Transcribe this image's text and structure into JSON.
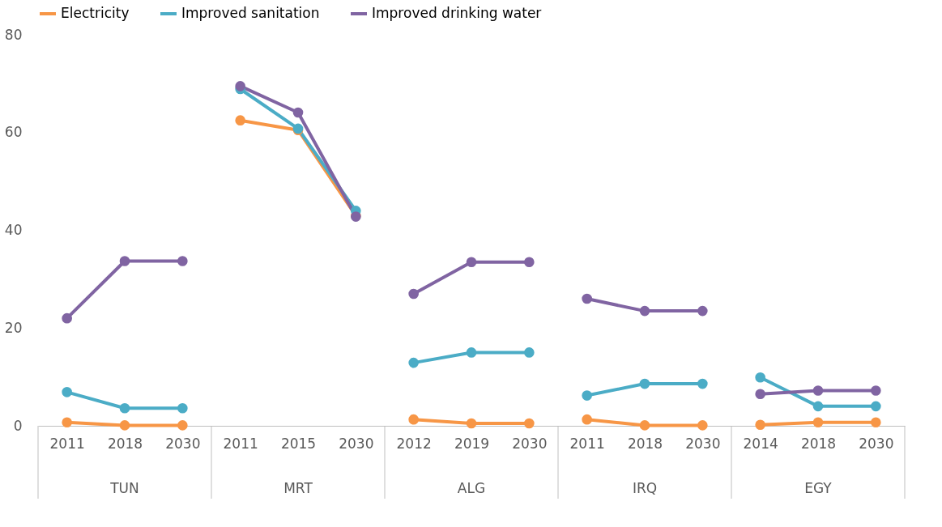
{
  "chart_data": {
    "type": "line",
    "categories": [
      "2011",
      "2018",
      "2030",
      "2011",
      "2015",
      "2030",
      "2012",
      "2019",
      "2030",
      "2011",
      "2018",
      "2030",
      "2014",
      "2018",
      "2030"
    ],
    "series": [
      {
        "name": "Electricity",
        "color": "#f79646",
        "values": [
          0.7,
          0.1,
          0.1,
          62.5,
          60.5,
          43.0,
          1.3,
          0.5,
          0.5,
          1.3,
          0.1,
          0.1,
          0.2,
          0.7,
          0.7
        ]
      },
      {
        "name": "Improved sanitation",
        "color": "#4bacc6",
        "values": [
          6.9,
          3.6,
          3.6,
          68.9,
          60.8,
          44.0,
          12.9,
          15.0,
          15.0,
          6.2,
          8.6,
          8.6,
          9.9,
          4.0,
          4.0
        ]
      },
      {
        "name": "Improved drinking water",
        "color": "#8064a2",
        "values": [
          22.0,
          33.7,
          33.7,
          69.5,
          64.1,
          42.8,
          27.0,
          33.5,
          33.5,
          26.0,
          23.5,
          23.5,
          6.5,
          7.2,
          7.2
        ]
      }
    ],
    "annotations": [
      "TUN",
      "MRT",
      "ALG",
      "IRQ",
      "EGY"
    ],
    "ylim": [
      0,
      80
    ],
    "yticks": [
      0,
      20,
      40,
      60,
      80
    ],
    "grid": false,
    "legend": "top",
    "marker": "circle",
    "line_style": "solid"
  }
}
